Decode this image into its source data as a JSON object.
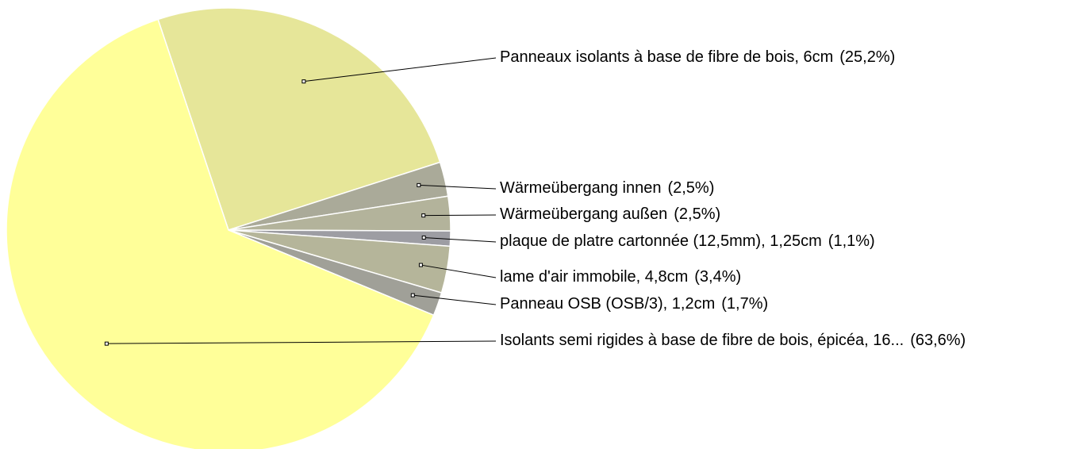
{
  "chart_data": {
    "type": "pie",
    "categories": [
      "Panneaux isolants à base de fibre de bois, 6cm",
      "Wärmeübergang innen",
      "Wärmeübergang außen",
      "plaque de platre cartonnée (12,5mm), 1,25cm",
      "lame d'air immobile, 4,8cm",
      "Panneau OSB (OSB/3), 1,2cm",
      "Isolants semi rigides à base de fibre de bois, épicéa, 16..."
    ],
    "values": [
      25.2,
      2.5,
      2.5,
      1.1,
      3.4,
      1.7,
      63.6
    ],
    "value_labels": [
      "(25,2%)",
      "(2,5%)",
      "(2,5%)",
      "(1,1%)",
      "(3,4%)",
      "(1,7%)",
      "(63,6%)"
    ],
    "colors": [
      "#e6e699",
      "#aaaa99",
      "#b3b39b",
      "#9d9da3",
      "#b5b59a",
      "#a0a098",
      "#ffff99"
    ]
  }
}
